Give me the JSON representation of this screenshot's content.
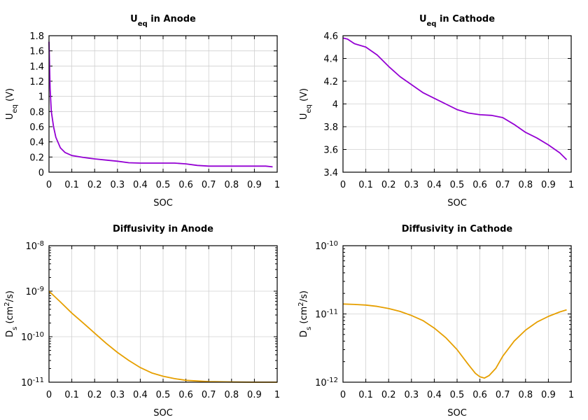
{
  "chart_data": [
    {
      "type": "line",
      "title": [
        {
          "t": "U"
        },
        {
          "t": "eq",
          "sub": true
        },
        {
          "t": " in Anode"
        }
      ],
      "xlabel": [
        {
          "t": "SOC"
        }
      ],
      "ylabel": [
        {
          "t": "U"
        },
        {
          "t": "eq",
          "sub": true
        },
        {
          "t": " (V)"
        }
      ],
      "xlim": [
        0,
        1
      ],
      "ylim": [
        0,
        1.8
      ],
      "yscale": "linear",
      "grid": true,
      "xticks": [
        "0",
        "0.1",
        "0.2",
        "0.3",
        "0.4",
        "0.5",
        "0.6",
        "0.7",
        "0.8",
        "0.9",
        "1"
      ],
      "yticks": [
        "0",
        "0.2",
        "0.4",
        "0.6",
        "0.8",
        "1",
        "1.2",
        "1.4",
        "1.6",
        "1.8"
      ],
      "color": "#9400d3",
      "x": [
        0,
        0.005,
        0.01,
        0.02,
        0.03,
        0.05,
        0.07,
        0.1,
        0.15,
        0.2,
        0.25,
        0.3,
        0.35,
        0.4,
        0.45,
        0.5,
        0.55,
        0.6,
        0.65,
        0.7,
        0.8,
        0.9,
        0.95,
        0.98
      ],
      "y": [
        1.72,
        1.1,
        0.8,
        0.6,
        0.46,
        0.32,
        0.26,
        0.22,
        0.195,
        0.175,
        0.16,
        0.145,
        0.125,
        0.12,
        0.12,
        0.12,
        0.12,
        0.11,
        0.09,
        0.08,
        0.08,
        0.08,
        0.08,
        0.07
      ]
    },
    {
      "type": "line",
      "title": [
        {
          "t": "U"
        },
        {
          "t": "eq",
          "sub": true
        },
        {
          "t": " in Cathode"
        }
      ],
      "xlabel": [
        {
          "t": "SOC"
        }
      ],
      "ylabel": [
        {
          "t": "U"
        },
        {
          "t": "eq",
          "sub": true
        },
        {
          "t": " (V)"
        }
      ],
      "xlim": [
        0,
        1
      ],
      "ylim": [
        3.4,
        4.6
      ],
      "yscale": "linear",
      "grid": true,
      "xticks": [
        "0",
        "0.1",
        "0.2",
        "0.3",
        "0.4",
        "0.5",
        "0.6",
        "0.7",
        "0.8",
        "0.9",
        "1"
      ],
      "yticks": [
        "3.4",
        "3.6",
        "3.8",
        "4",
        "4.2",
        "4.4",
        "4.6"
      ],
      "color": "#9400d3",
      "x": [
        0,
        0.02,
        0.05,
        0.1,
        0.15,
        0.2,
        0.25,
        0.3,
        0.35,
        0.4,
        0.45,
        0.5,
        0.55,
        0.6,
        0.65,
        0.7,
        0.75,
        0.8,
        0.85,
        0.9,
        0.95,
        0.98
      ],
      "y": [
        4.58,
        4.57,
        4.53,
        4.5,
        4.43,
        4.33,
        4.24,
        4.17,
        4.1,
        4.05,
        4.0,
        3.95,
        3.92,
        3.905,
        3.9,
        3.88,
        3.82,
        3.75,
        3.7,
        3.64,
        3.57,
        3.51
      ]
    },
    {
      "type": "line",
      "title": [
        {
          "t": "Diffusivity in Anode"
        }
      ],
      "xlabel": [
        {
          "t": "SOC"
        }
      ],
      "ylabel": [
        {
          "t": "D"
        },
        {
          "t": "s",
          "sub": true
        },
        {
          "t": " (cm"
        },
        {
          "t": "2",
          "sup": true
        },
        {
          "t": "/s)"
        }
      ],
      "xlim": [
        0,
        1
      ],
      "ylim": [
        1e-11,
        1e-08
      ],
      "yscale": "log",
      "grid": true,
      "xticks": [
        "0",
        "0.1",
        "0.2",
        "0.3",
        "0.4",
        "0.5",
        "0.6",
        "0.7",
        "0.8",
        "0.9",
        "1"
      ],
      "yticks": [
        {
          "base": "10",
          "exp": "-11"
        },
        {
          "base": "10",
          "exp": "-10"
        },
        {
          "base": "10",
          "exp": "-9"
        },
        {
          "base": "10",
          "exp": "-8"
        }
      ],
      "color": "#e69f00",
      "x": [
        0,
        0.05,
        0.1,
        0.15,
        0.2,
        0.25,
        0.3,
        0.35,
        0.4,
        0.45,
        0.5,
        0.55,
        0.6,
        0.7,
        0.8,
        0.9,
        1.0
      ],
      "y": [
        1e-09,
        5.8e-10,
        3.3e-10,
        2e-10,
        1.2e-10,
        7.2e-11,
        4.5e-11,
        3e-11,
        2.1e-11,
        1.6e-11,
        1.35e-11,
        1.2e-11,
        1.1e-11,
        1.03e-11,
        1.01e-11,
        1e-11,
        1e-11
      ]
    },
    {
      "type": "line",
      "title": [
        {
          "t": "Diffusivity in Cathode"
        }
      ],
      "xlabel": [
        {
          "t": "SOC"
        }
      ],
      "ylabel": [
        {
          "t": "D"
        },
        {
          "t": "s",
          "sub": true
        },
        {
          "t": " (cm"
        },
        {
          "t": "2",
          "sup": true
        },
        {
          "t": "/s)"
        }
      ],
      "xlim": [
        0,
        1
      ],
      "ylim": [
        1e-12,
        1e-10
      ],
      "yscale": "log",
      "grid": true,
      "xticks": [
        "0",
        "0.1",
        "0.2",
        "0.3",
        "0.4",
        "0.5",
        "0.6",
        "0.7",
        "0.8",
        "0.9",
        "1"
      ],
      "yticks": [
        {
          "base": "10",
          "exp": "-12"
        },
        {
          "base": "10",
          "exp": "-11"
        },
        {
          "base": "10",
          "exp": "-10"
        }
      ],
      "color": "#e69f00",
      "x": [
        0,
        0.05,
        0.1,
        0.15,
        0.2,
        0.25,
        0.3,
        0.35,
        0.4,
        0.45,
        0.5,
        0.55,
        0.58,
        0.6,
        0.62,
        0.64,
        0.67,
        0.7,
        0.75,
        0.8,
        0.85,
        0.9,
        0.95,
        0.98
      ],
      "y": [
        1.4e-11,
        1.38e-11,
        1.35e-11,
        1.29e-11,
        1.2e-11,
        1.09e-11,
        9.5e-12,
        8e-12,
        6.2e-12,
        4.5e-12,
        3e-12,
        1.8e-12,
        1.35e-12,
        1.2e-12,
        1.15e-12,
        1.25e-12,
        1.6e-12,
        2.4e-12,
        4e-12,
        5.8e-12,
        7.6e-12,
        9.2e-12,
        1.07e-11,
        1.15e-11
      ]
    }
  ]
}
